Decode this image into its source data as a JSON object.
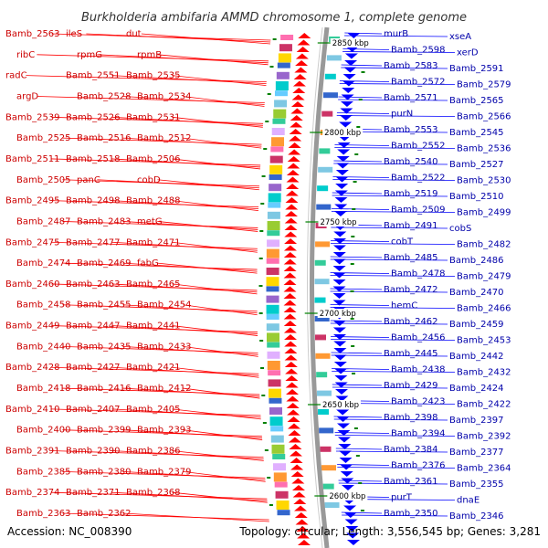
{
  "title": "Burkholderia ambifaria AMMD chromosome 1, complete genome",
  "accession": "Accession: NC_008390",
  "topology": "Topology: circular; Length: 3,556,545 bp; Genes: 3,281",
  "colors": {
    "forward": "#ff0000",
    "reverse": "#0000ff",
    "backbone": "#999999",
    "tick": "#008000",
    "title": "#333333"
  },
  "kbp_labels": [
    {
      "text": "2850 kbp",
      "row": 1
    },
    {
      "text": "2800 kbp",
      "row": 2
    },
    {
      "text": "2750 kbp",
      "row": 3
    },
    {
      "text": "2700 kbp",
      "row": 4
    },
    {
      "text": "2650 kbp",
      "row": 5
    },
    {
      "text": "2600 kbp",
      "row": 6
    }
  ],
  "left_labels": [
    "Bamb_2563",
    "ileS",
    "dut",
    "ribC",
    "rpmG",
    "rpmB",
    "radC",
    "Bamb_2551",
    "Bamb_2535",
    "argD",
    "Bamb_2528",
    "Bamb_2534",
    "Bamb_2539",
    "Bamb_2526",
    "Bamb_2531",
    "Bamb_2525",
    "Bamb_2516",
    "Bamb_2512",
    "Bamb_2511",
    "Bamb_2518",
    "Bamb_2506",
    "Bamb_2505",
    "panC",
    "cobD",
    "Bamb_2495",
    "Bamb_2498",
    "Bamb_2488",
    "Bamb_2487",
    "Bamb_2483",
    "metG",
    "Bamb_2475",
    "Bamb_2477",
    "Bamb_2471",
    "Bamb_2474",
    "Bamb_2469",
    "fabG",
    "Bamb_2460",
    "Bamb_2463",
    "Bamb_2465",
    "Bamb_2458",
    "Bamb_2455",
    "Bamb_2454",
    "Bamb_2449",
    "Bamb_2447",
    "Bamb_2441",
    "Bamb_2440",
    "Bamb_2435",
    "Bamb_2433",
    "Bamb_2428",
    "Bamb_2427",
    "Bamb_2421",
    "Bamb_2418",
    "Bamb_2416",
    "Bamb_2412",
    "Bamb_2410",
    "Bamb_2407",
    "Bamb_2405",
    "Bamb_2400",
    "Bamb_2399",
    "Bamb_2393",
    "Bamb_2391",
    "Bamb_2390",
    "Bamb_2386",
    "Bamb_2385",
    "Bamb_2380",
    "Bamb_2379",
    "Bamb_2374",
    "Bamb_2371",
    "Bamb_2368",
    "Bamb_2363",
    "Bamb_2362"
  ],
  "right_labels": [
    "murB",
    "xseA",
    "Bamb_2598",
    "xerD",
    "Bamb_2583",
    "Bamb_2591",
    "Bamb_2572",
    "Bamb_2579",
    "Bamb_2571",
    "Bamb_2565",
    "purN",
    "Bamb_2566",
    "Bamb_2553",
    "Bamb_2545",
    "Bamb_2552",
    "Bamb_2536",
    "Bamb_2540",
    "Bamb_2527",
    "Bamb_2522",
    "Bamb_2530",
    "Bamb_2519",
    "Bamb_2510",
    "Bamb_2509",
    "Bamb_2499",
    "Bamb_2491",
    "cobS",
    "cobT",
    "Bamb_2482",
    "Bamb_2485",
    "Bamb_2486",
    "Bamb_2478",
    "Bamb_2479",
    "Bamb_2472",
    "Bamb_2470",
    "hemC",
    "Bamb_2466",
    "Bamb_2462",
    "Bamb_2459",
    "Bamb_2456",
    "Bamb_2453",
    "Bamb_2445",
    "Bamb_2442",
    "Bamb_2438",
    "Bamb_2432",
    "Bamb_2429",
    "Bamb_2424",
    "Bamb_2423",
    "Bamb_2422",
    "Bamb_2398",
    "Bamb_2397",
    "Bamb_2394",
    "Bamb_2392",
    "Bamb_2384",
    "Bamb_2377",
    "Bamb_2376",
    "Bamb_2364",
    "Bamb_2361",
    "Bamb_2355",
    "purT",
    "dnaE",
    "Bamb_2350",
    "Bamb_2346"
  ]
}
